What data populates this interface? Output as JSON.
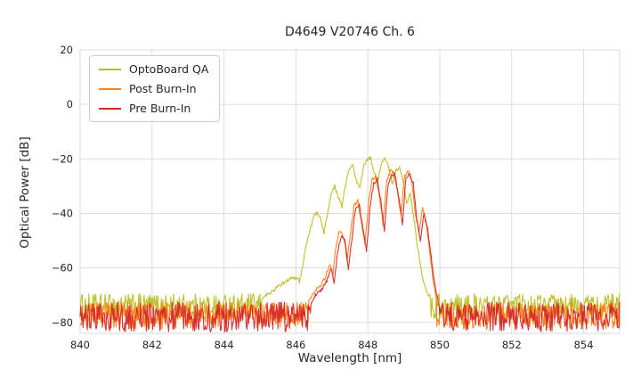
{
  "figure": {
    "title": "D4649 V20746 Ch. 6",
    "xlabel": "Wavelength [nm]",
    "ylabel": "Optical Power [dB]"
  },
  "chart_data": {
    "type": "line",
    "title": "D4649 V20746 Ch. 6",
    "xlabel": "Wavelength [nm]",
    "ylabel": "Optical Power [dB]",
    "xlim": [
      840,
      855
    ],
    "ylim": [
      -84,
      20
    ],
    "x_ticks": [
      840,
      842,
      844,
      846,
      848,
      850,
      852,
      854
    ],
    "y_ticks": [
      20,
      0,
      -20,
      -40,
      -60,
      -80
    ],
    "grid": true,
    "grid_color": "#dddddd",
    "legend_position": "upper left",
    "description": "Optical power spectrum of laser channel 6; noise floor near -75 dB across 840-855 nm with multimode laser peak between ~845.5 and ~850 nm.",
    "series": [
      {
        "name": "OptoBoard QA",
        "color": "#bcbd22",
        "noise_floor_db": -74,
        "noise_amplitude_db": 4.5,
        "peak_region": [
          [
            845.05,
            -71
          ],
          [
            845.3,
            -69
          ],
          [
            845.5,
            -67
          ],
          [
            845.7,
            -65
          ],
          [
            845.85,
            -64
          ],
          [
            846.0,
            -63.5
          ],
          [
            846.1,
            -65
          ],
          [
            846.2,
            -58
          ],
          [
            846.3,
            -51
          ],
          [
            846.4,
            -45.5
          ],
          [
            846.5,
            -41
          ],
          [
            846.6,
            -39.5
          ],
          [
            846.7,
            -43
          ],
          [
            846.78,
            -47
          ],
          [
            846.88,
            -40
          ],
          [
            846.98,
            -32.5
          ],
          [
            847.08,
            -30
          ],
          [
            847.18,
            -34
          ],
          [
            847.28,
            -37.5
          ],
          [
            847.38,
            -29
          ],
          [
            847.48,
            -24
          ],
          [
            847.58,
            -22.5
          ],
          [
            847.68,
            -28
          ],
          [
            847.78,
            -31
          ],
          [
            847.88,
            -23
          ],
          [
            847.98,
            -20
          ],
          [
            848.08,
            -19.5
          ],
          [
            848.18,
            -25
          ],
          [
            848.28,
            -28.5
          ],
          [
            848.38,
            -21
          ],
          [
            848.48,
            -19.8
          ],
          [
            848.58,
            -23
          ],
          [
            848.68,
            -29
          ],
          [
            848.78,
            -24
          ],
          [
            848.88,
            -23
          ],
          [
            848.98,
            -28
          ],
          [
            849.08,
            -36
          ],
          [
            849.18,
            -33
          ],
          [
            849.28,
            -42
          ],
          [
            849.38,
            -52
          ],
          [
            849.5,
            -62
          ],
          [
            849.62,
            -68
          ],
          [
            849.75,
            -72
          ]
        ]
      },
      {
        "name": "Post Burn-In",
        "color": "#ff7f0e",
        "noise_floor_db": -77.5,
        "noise_amplitude_db": 5,
        "peak_region": [
          [
            846.35,
            -72
          ],
          [
            846.5,
            -69
          ],
          [
            846.65,
            -67
          ],
          [
            846.8,
            -64
          ],
          [
            846.95,
            -58
          ],
          [
            847.02,
            -63
          ],
          [
            847.12,
            -52
          ],
          [
            847.22,
            -46
          ],
          [
            847.32,
            -48
          ],
          [
            847.42,
            -57
          ],
          [
            847.52,
            -47
          ],
          [
            847.62,
            -37
          ],
          [
            847.72,
            -35.5
          ],
          [
            847.82,
            -43
          ],
          [
            847.92,
            -51
          ],
          [
            848.02,
            -36
          ],
          [
            848.12,
            -27.5
          ],
          [
            848.22,
            -26.5
          ],
          [
            848.32,
            -33
          ],
          [
            848.42,
            -44
          ],
          [
            848.52,
            -28
          ],
          [
            848.62,
            -24.5
          ],
          [
            848.72,
            -25
          ],
          [
            848.82,
            -32
          ],
          [
            848.92,
            -41
          ],
          [
            849.02,
            -26
          ],
          [
            849.12,
            -24.5
          ],
          [
            849.22,
            -28
          ],
          [
            849.32,
            -40
          ],
          [
            849.42,
            -47
          ],
          [
            849.52,
            -38
          ],
          [
            849.6,
            -42
          ],
          [
            849.7,
            -52
          ],
          [
            849.8,
            -63
          ],
          [
            849.9,
            -71
          ]
        ]
      },
      {
        "name": "Pre Burn-In",
        "color": "#d62728",
        "noise_floor_db": -78,
        "noise_amplitude_db": 5.5,
        "peak_region": [
          [
            846.4,
            -73
          ],
          [
            846.55,
            -70
          ],
          [
            846.7,
            -68
          ],
          [
            846.85,
            -65
          ],
          [
            846.98,
            -60
          ],
          [
            847.06,
            -66
          ],
          [
            847.16,
            -54
          ],
          [
            847.26,
            -48
          ],
          [
            847.36,
            -50
          ],
          [
            847.46,
            -60
          ],
          [
            847.56,
            -49
          ],
          [
            847.66,
            -38
          ],
          [
            847.76,
            -36.5
          ],
          [
            847.86,
            -45
          ],
          [
            847.96,
            -54
          ],
          [
            848.06,
            -38
          ],
          [
            848.16,
            -29
          ],
          [
            848.26,
            -27.5
          ],
          [
            848.36,
            -35
          ],
          [
            848.46,
            -47
          ],
          [
            848.56,
            -29.5
          ],
          [
            848.66,
            -25.5
          ],
          [
            848.76,
            -26
          ],
          [
            848.86,
            -34
          ],
          [
            848.96,
            -44
          ],
          [
            849.06,
            -27
          ],
          [
            849.16,
            -25.5
          ],
          [
            849.26,
            -29
          ],
          [
            849.36,
            -42
          ],
          [
            849.46,
            -50
          ],
          [
            849.56,
            -40
          ],
          [
            849.66,
            -46
          ],
          [
            849.76,
            -56
          ],
          [
            849.86,
            -66
          ],
          [
            849.96,
            -73
          ]
        ]
      }
    ]
  }
}
